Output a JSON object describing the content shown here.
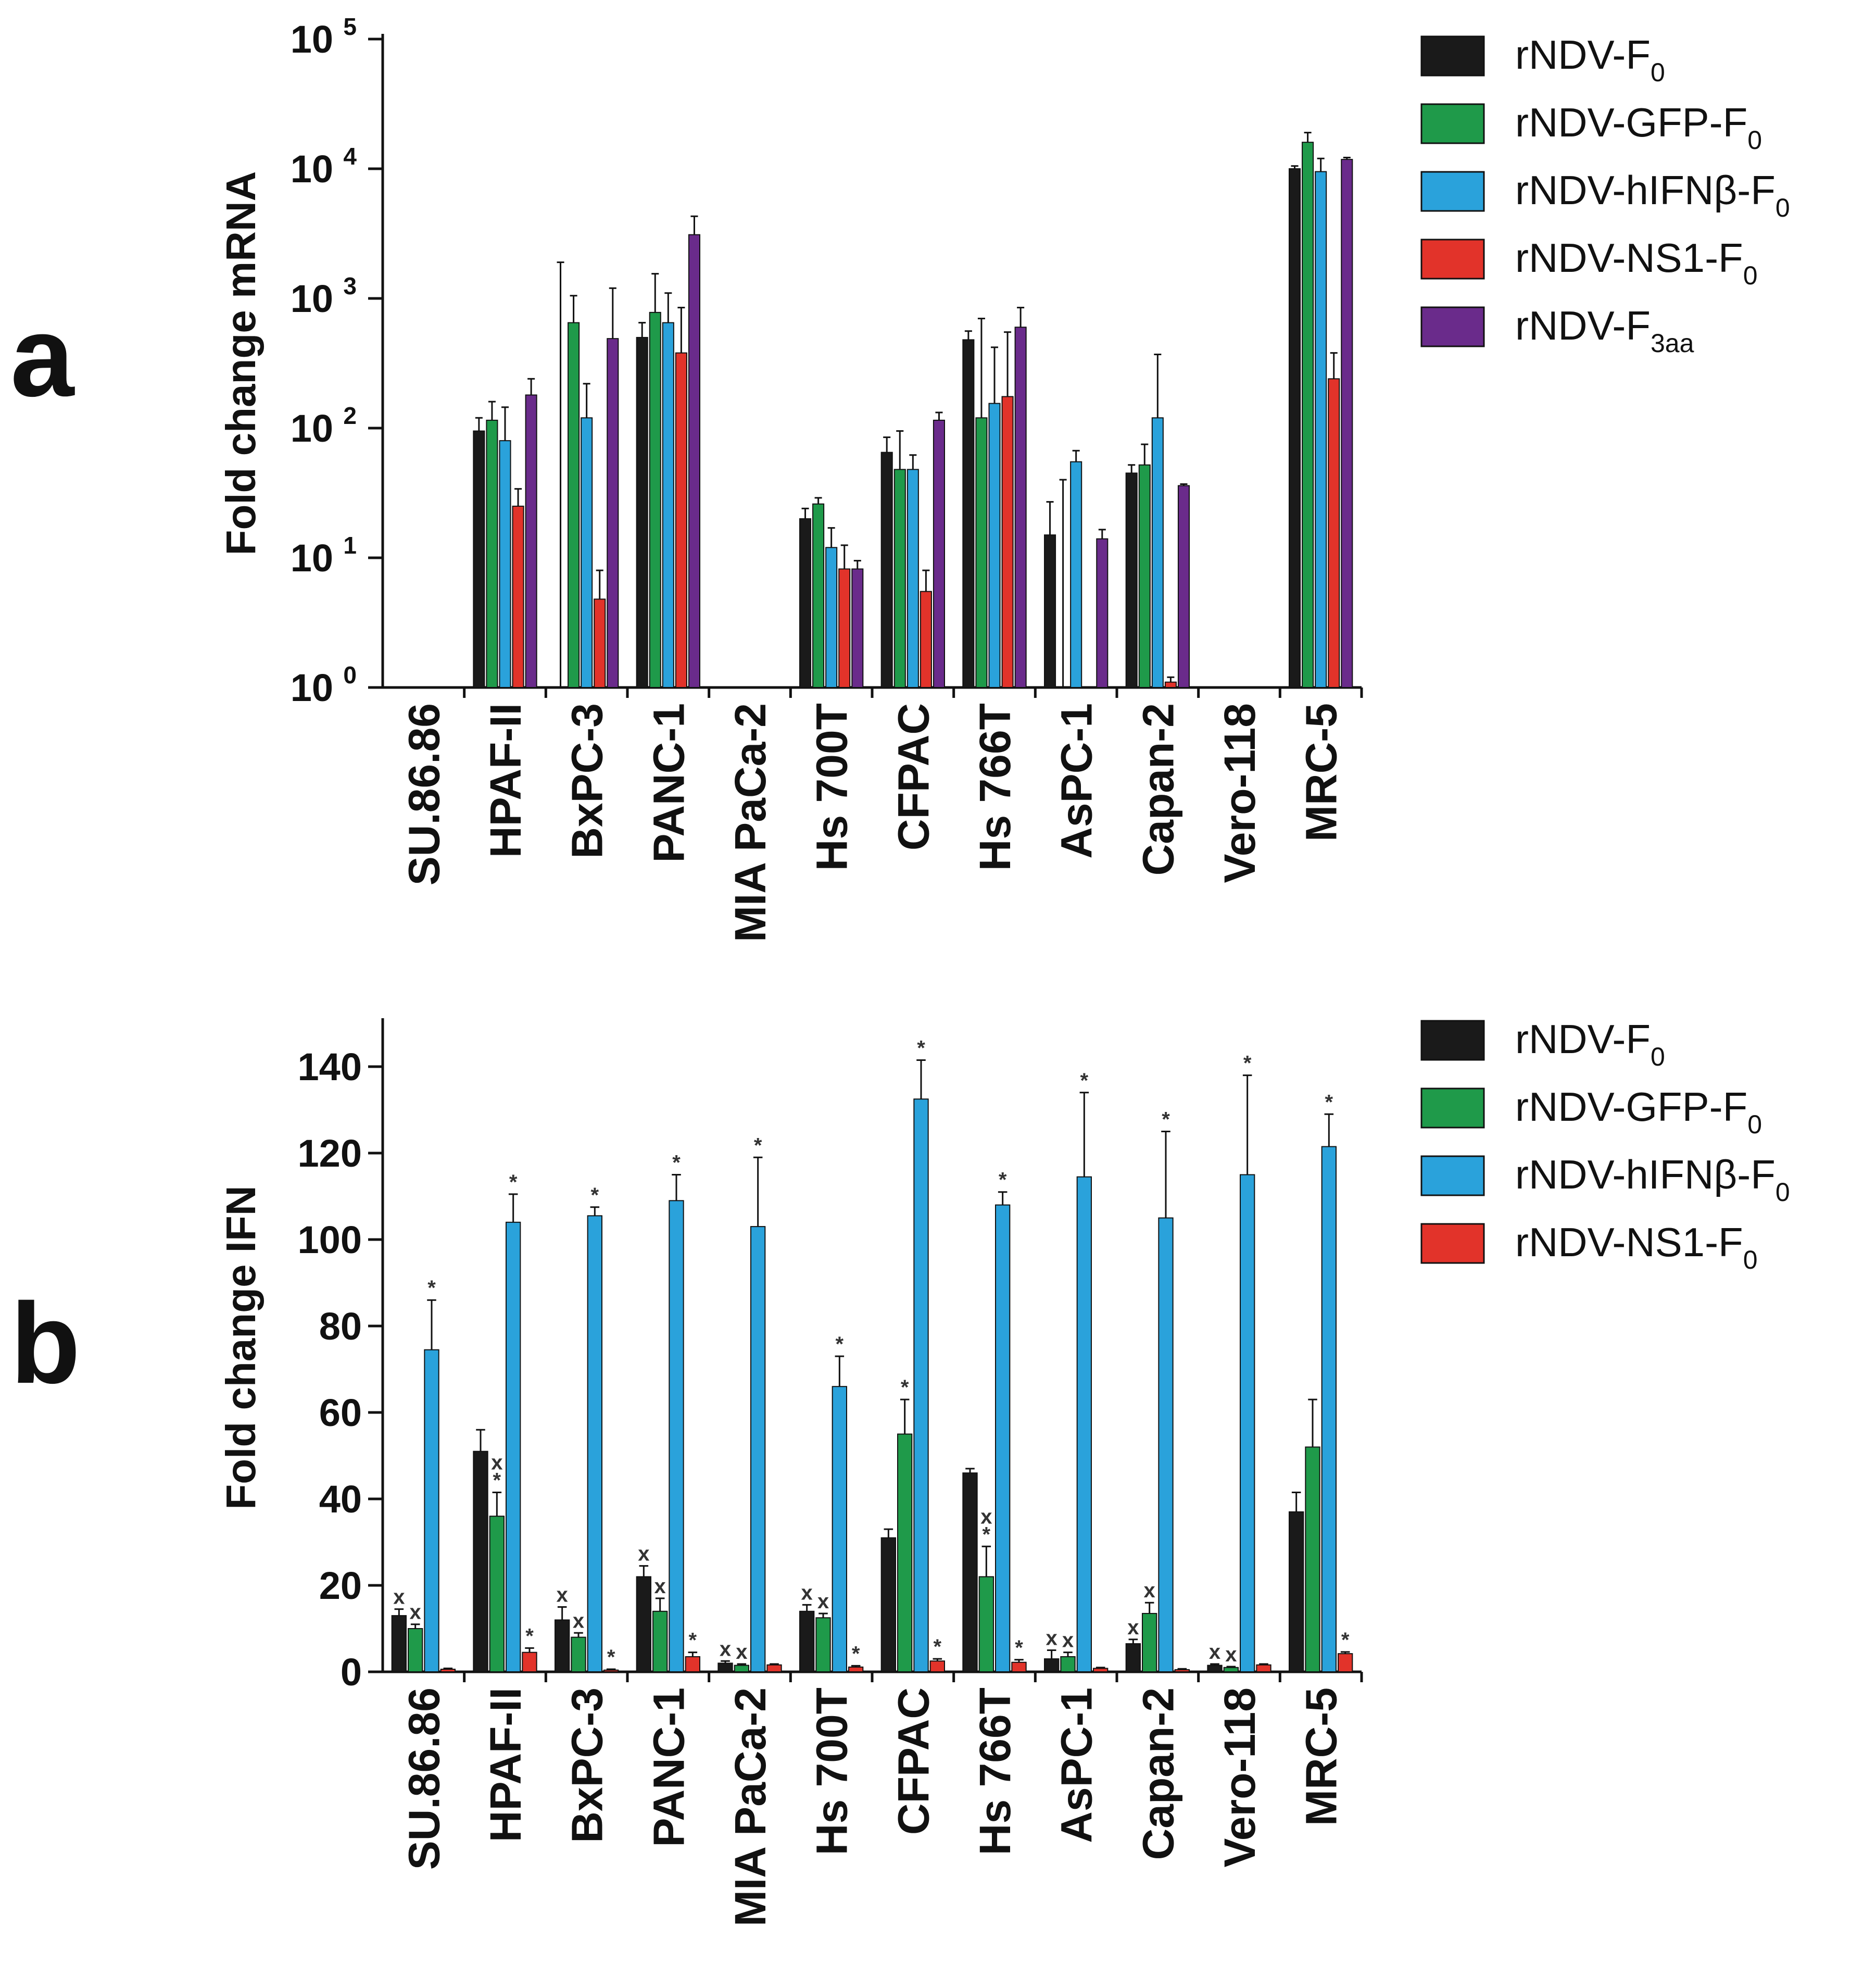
{
  "panels": [
    {
      "letter": "a",
      "chart_data": {
        "type": "bar",
        "scale": "log",
        "ylabel": "Fold change mRNA",
        "ylim": [
          1,
          100000
        ],
        "yticks": [
          {
            "value": 1,
            "base": "10",
            "exp": "0"
          },
          {
            "value": 10,
            "base": "10",
            "exp": "1"
          },
          {
            "value": 100,
            "base": "10",
            "exp": "2"
          },
          {
            "value": 1000,
            "base": "10",
            "exp": "3"
          },
          {
            "value": 10000,
            "base": "10",
            "exp": "4"
          },
          {
            "value": 100000,
            "base": "10",
            "exp": "5"
          }
        ],
        "categories": [
          "SU.86.86",
          "HPAF-II",
          "BxPC-3",
          "PANC-1",
          "MIA PaCa-2",
          "Hs 700T",
          "CFPAC",
          "Hs 766T",
          "AsPC-1",
          "Capan-2",
          "Vero-118",
          "MRC-5"
        ],
        "series": [
          {
            "name": "rNDV-F",
            "sub": "0",
            "color": "#1a1a1a",
            "values": [
              null,
              95,
              null,
              500,
              null,
              20,
              65,
              480,
              15,
              45,
              null,
              10000
            ],
            "err": [
              null,
              120,
              1900,
              650,
              null,
              24,
              85,
              560,
              27,
              52,
              null,
              10500
            ]
          },
          {
            "name": "rNDV-GFP-F",
            "sub": "0",
            "color": "#1f9a4a",
            "values": [
              null,
              115,
              650,
              780,
              null,
              26,
              48,
              120,
              null,
              52,
              null,
              16000
            ],
            "err": [
              null,
              160,
              1050,
              1550,
              null,
              29,
              95,
              700,
              40,
              75,
              null,
              19000
            ]
          },
          {
            "name": "rNDV-hIFNβ-F",
            "sub": "0",
            "color": "#2aa2db",
            "values": [
              null,
              80,
              120,
              650,
              null,
              12,
              48,
              155,
              55,
              120,
              null,
              9500
            ],
            "err": [
              null,
              145,
              220,
              1100,
              null,
              17,
              62,
              420,
              67,
              370,
              null,
              12000
            ]
          },
          {
            "name": "rNDV-NS1-F",
            "sub": "0",
            "color": "#e2332a",
            "values": [
              null,
              25,
              4.8,
              380,
              null,
              8.2,
              5.5,
              175,
              null,
              1.1,
              null,
              240
            ],
            "err": [
              null,
              34,
              8,
              850,
              null,
              12.5,
              8,
              550,
              null,
              1.2,
              null,
              380
            ]
          },
          {
            "name": "rNDV-F",
            "sub": "3aa",
            "color": "#6a2b8b",
            "values": [
              null,
              180,
              490,
              3100,
              null,
              8.2,
              115,
              600,
              14,
              36,
              null,
              11800
            ],
            "err": [
              null,
              240,
              1200,
              4300,
              null,
              9.5,
              132,
              850,
              16.5,
              37,
              null,
              12200
            ]
          }
        ]
      }
    },
    {
      "letter": "b",
      "chart_data": {
        "type": "bar",
        "scale": "linear",
        "ylabel": "Fold change IFN",
        "ylim": [
          0,
          150
        ],
        "yticks": [
          {
            "value": 0,
            "label": "0"
          },
          {
            "value": 20,
            "label": "20"
          },
          {
            "value": 40,
            "label": "40"
          },
          {
            "value": 60,
            "label": "60"
          },
          {
            "value": 80,
            "label": "80"
          },
          {
            "value": 100,
            "label": "100"
          },
          {
            "value": 120,
            "label": "120"
          },
          {
            "value": 140,
            "label": "140"
          }
        ],
        "categories": [
          "SU.86.86",
          "HPAF-II",
          "BxPC-3",
          "PANC-1",
          "MIA PaCa-2",
          "Hs 700T",
          "CFPAC",
          "Hs 766T",
          "AsPC-1",
          "Capan-2",
          "Vero-118",
          "MRC-5"
        ],
        "series": [
          {
            "name": "rNDV-F",
            "sub": "0",
            "color": "#1a1a1a",
            "values": [
              13,
              51,
              12,
              22,
              2,
              14,
              31,
              46,
              3,
              6.5,
              1.5,
              37
            ],
            "err": [
              14.5,
              56,
              15,
              24.5,
              2.5,
              15.5,
              33,
              47,
              5,
              7.5,
              1.8,
              41.5
            ],
            "marks": [
              "x",
              "",
              "x",
              "x",
              "x",
              "x",
              "",
              "",
              "x",
              "x",
              "x",
              ""
            ]
          },
          {
            "name": "rNDV-GFP-F",
            "sub": "0",
            "color": "#1f9a4a",
            "values": [
              10,
              36,
              8,
              14,
              1.5,
              12.5,
              55,
              22,
              3.5,
              13.5,
              1,
              52
            ],
            "err": [
              11,
              41.5,
              9,
              17,
              1.8,
              13.5,
              63,
              29,
              4.5,
              16,
              1.2,
              63
            ],
            "marks": [
              "x",
              "x*",
              "x",
              "x",
              "x",
              "x",
              "*",
              "x*",
              "x",
              "x",
              "x",
              ""
            ]
          },
          {
            "name": "rNDV-hIFNβ-F",
            "sub": "0",
            "color": "#2aa2db",
            "values": [
              74.5,
              104,
              105.5,
              109,
              103,
              66,
              132.5,
              108,
              114.5,
              105,
              115,
              121.5
            ],
            "err": [
              86,
              110.5,
              107.5,
              115,
              119,
              73,
              141.5,
              111,
              134,
              125,
              138,
              129
            ],
            "marks": [
              "*",
              "*",
              "*",
              "*",
              "*",
              "*",
              "*",
              "*",
              "*",
              "*",
              "*",
              "*"
            ]
          },
          {
            "name": "rNDV-NS1-F",
            "sub": "0",
            "color": "#e2332a",
            "values": [
              0.6,
              4.5,
              0.4,
              3.5,
              1.6,
              1.1,
              2.5,
              2.2,
              0.8,
              0.5,
              1.6,
              4.2
            ],
            "err": [
              0.8,
              5.5,
              0.6,
              4.5,
              1.8,
              1.4,
              3,
              2.8,
              1,
              0.7,
              1.8,
              4.6
            ],
            "marks": [
              "",
              "*",
              "*",
              "*",
              "",
              "*",
              "*",
              "*",
              "",
              "",
              "",
              "*"
            ]
          }
        ]
      }
    }
  ]
}
